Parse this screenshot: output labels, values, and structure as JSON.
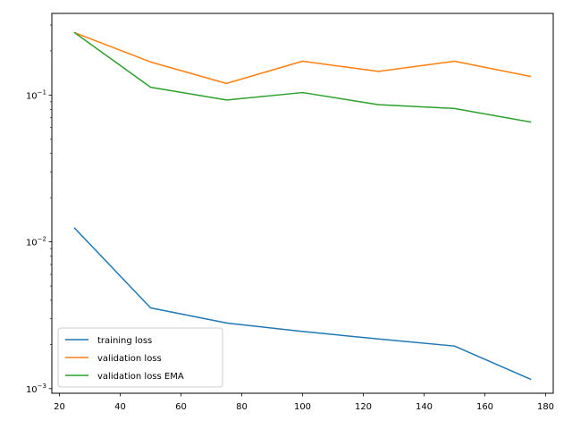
{
  "chart_data": {
    "type": "line",
    "title": "",
    "xlabel": "",
    "ylabel": "",
    "xlim": [
      17.5,
      182.5
    ],
    "ylim": [
      0.00093,
      0.36
    ],
    "yscale": "log",
    "grid": false,
    "legend_position": "lower-left",
    "x_ticks": [
      20,
      40,
      60,
      80,
      100,
      120,
      140,
      160,
      180
    ],
    "y_major_ticks": [
      {
        "value": 0.1,
        "base": "10",
        "exp": "−1"
      },
      {
        "value": 0.01,
        "base": "10",
        "exp": "−2"
      },
      {
        "value": 0.001,
        "base": "10",
        "exp": "−3"
      }
    ],
    "series": [
      {
        "name": "training loss",
        "color": "#1f77b4",
        "x": [
          25,
          50,
          75,
          100,
          125,
          150,
          175
        ],
        "y": [
          0.0124,
          0.00355,
          0.0028,
          0.00245,
          0.00218,
          0.00195,
          0.00116
        ]
      },
      {
        "name": "validation loss",
        "color": "#ff7f0e",
        "x": [
          25,
          50,
          75,
          100,
          125,
          150,
          175
        ],
        "y": [
          0.266,
          0.168,
          0.12,
          0.17,
          0.145,
          0.17,
          0.134
        ]
      },
      {
        "name": "validation loss EMA",
        "color": "#2ca02c",
        "x": [
          25,
          50,
          75,
          100,
          125,
          150,
          175
        ],
        "y": [
          0.266,
          0.113,
          0.0925,
          0.104,
          0.086,
          0.081,
          0.0655
        ]
      }
    ]
  }
}
